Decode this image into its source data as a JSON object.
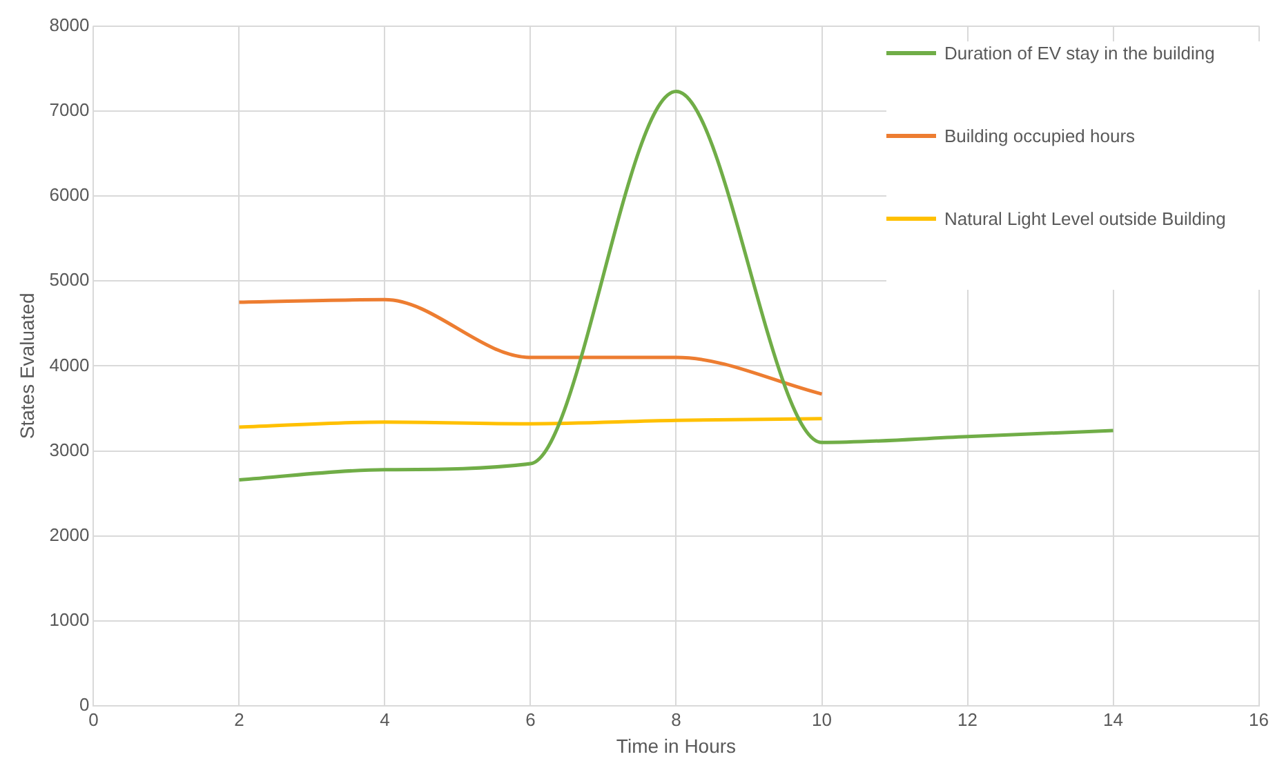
{
  "chart_data": {
    "type": "line",
    "xlabel": "Time in Hours",
    "ylabel": "States Evaluated",
    "x": [
      2,
      4,
      6,
      8,
      10,
      12,
      14
    ],
    "series": [
      {
        "name": "Duration of EV stay in the building",
        "color": "#70ad47",
        "values": [
          2660,
          2780,
          2850,
          7230,
          3100,
          3170,
          3240
        ]
      },
      {
        "name": "Building occupied hours",
        "color": "#ed7d31",
        "values": [
          4750,
          4780,
          4100,
          4100,
          3670,
          null,
          null
        ]
      },
      {
        "name": "Natural Light Level outside Building",
        "color": "#ffc000",
        "values": [
          3280,
          3340,
          3320,
          3360,
          3380,
          null,
          null
        ]
      }
    ],
    "xlim": [
      0,
      16
    ],
    "xticks": [
      0,
      2,
      4,
      6,
      8,
      10,
      12,
      14,
      16
    ],
    "ylim": [
      0,
      8000
    ],
    "yticks": [
      0,
      1000,
      2000,
      3000,
      4000,
      5000,
      6000,
      7000,
      8000
    ],
    "grid": true,
    "legend": "top right",
    "marker": "none"
  }
}
